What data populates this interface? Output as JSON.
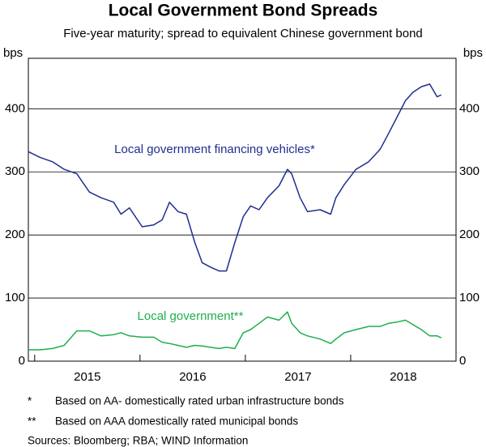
{
  "chart_data": {
    "type": "line",
    "title": "Local Government Bond Spreads",
    "subtitle": "Five-year maturity; spread to equivalent Chinese government bond",
    "y_label": "bps",
    "y2_label": "bps",
    "x": [
      2014.94,
      2015.05,
      2015.17,
      2015.28,
      2015.4,
      2015.52,
      2015.63,
      2015.75,
      2015.82,
      2015.9,
      2016.02,
      2016.13,
      2016.21,
      2016.28,
      2016.36,
      2016.44,
      2016.52,
      2016.59,
      2016.67,
      2016.75,
      2016.82,
      2016.9,
      2016.98,
      2017.05,
      2017.13,
      2017.21,
      2017.32,
      2017.4,
      2017.44,
      2017.52,
      2017.59,
      2017.71,
      2017.81,
      2017.86,
      2017.94,
      2018.05,
      2018.17,
      2018.28,
      2018.36,
      2018.44,
      2018.52,
      2018.59,
      2018.67,
      2018.75,
      2018.82,
      2018.86
    ],
    "series": [
      {
        "name": "Local government financing vehicles*",
        "color": "#1f2f8f",
        "values": [
          332,
          323,
          316,
          304,
          297,
          268,
          259,
          252,
          233,
          243,
          213,
          216,
          224,
          252,
          237,
          233,
          188,
          156,
          149,
          143,
          143,
          188,
          229,
          246,
          240,
          259,
          278,
          304,
          297,
          259,
          237,
          240,
          233,
          259,
          280,
          304,
          316,
          336,
          361,
          387,
          413,
          426,
          435,
          439,
          419,
          422
        ]
      },
      {
        "name": "Local government**",
        "color": "#1fae4f",
        "values": [
          18,
          18,
          20,
          25,
          48,
          48,
          40,
          42,
          45,
          40,
          38,
          38,
          30,
          28,
          25,
          22,
          25,
          24,
          22,
          20,
          22,
          20,
          45,
          50,
          60,
          70,
          65,
          78,
          60,
          45,
          40,
          35,
          28,
          35,
          45,
          50,
          55,
          55,
          60,
          62,
          65,
          58,
          50,
          40,
          40,
          37
        ]
      }
    ],
    "xlim": [
      2014.94,
      2019.0
    ],
    "xticks": [
      {
        "value": 2015.5,
        "label": "2015"
      },
      {
        "value": 2016.5,
        "label": "2016"
      },
      {
        "value": 2017.5,
        "label": "2017"
      },
      {
        "value": 2018.5,
        "label": "2018"
      }
    ],
    "x_year_marks": [
      2015,
      2016,
      2017,
      2018
    ],
    "ylim": [
      0,
      480
    ],
    "yticks": [
      0,
      100,
      200,
      300,
      400
    ],
    "grid": true,
    "footnotes": [
      {
        "symbol": "*",
        "text": "Based on AA- domestically rated urban infrastructure bonds"
      },
      {
        "symbol": "**",
        "text": "Based on AAA domestically rated municipal bonds"
      }
    ],
    "source": "Sources: Bloomberg; RBA; WIND Information"
  }
}
